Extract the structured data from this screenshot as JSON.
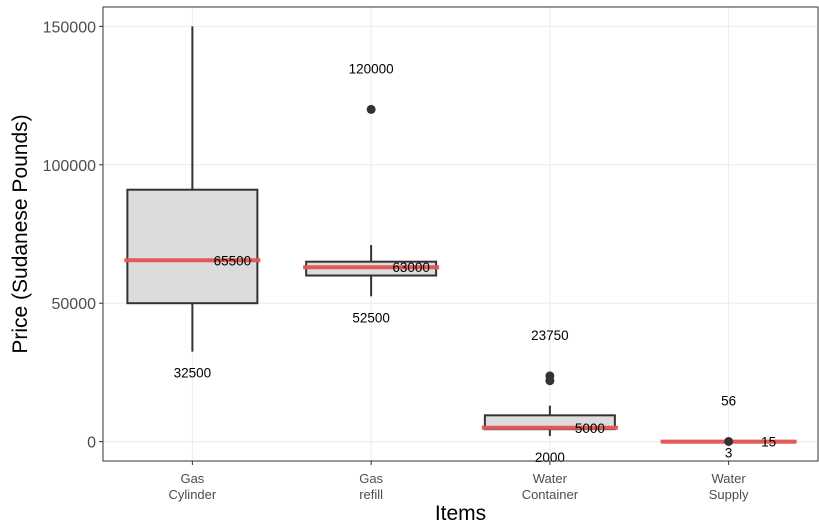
{
  "chart_data": {
    "type": "boxplot",
    "xlabel": "Items",
    "ylabel": "Price (Sudanese Pounds)",
    "ylim": [
      -7000,
      157000
    ],
    "yticks": [
      0,
      50000,
      100000,
      150000
    ],
    "ytick_labels": [
      "0",
      "50000",
      "100000",
      "150000"
    ],
    "grid": true,
    "colors": {
      "box_fill": "#dcdcdc",
      "box_stroke": "#333333",
      "median": "#e05a5a",
      "outlier": "#333333",
      "grid": "#ebebeb",
      "panel_border": "#333333"
    },
    "categories": [
      {
        "label_lines": [
          "Gas",
          "Cylinder"
        ],
        "min": 32500,
        "q1": 50000,
        "median": 65500,
        "q3": 91000,
        "max": 150000,
        "outliers": [],
        "annotations": [
          {
            "text": "65500",
            "value": 65500,
            "anchor": "median-right"
          },
          {
            "text": "32500",
            "value": 32500,
            "anchor": "below"
          }
        ]
      },
      {
        "label_lines": [
          "Gas",
          "refill"
        ],
        "min": 52500,
        "q1": 60000,
        "median": 63000,
        "q3": 65000,
        "max": 71000,
        "outliers": [
          120000
        ],
        "annotations": [
          {
            "text": "120000",
            "value": 120000,
            "anchor": "above"
          },
          {
            "text": "63000",
            "value": 63000,
            "anchor": "median-right"
          },
          {
            "text": "52500",
            "value": 52500,
            "anchor": "below"
          }
        ]
      },
      {
        "label_lines": [
          "Water",
          "Container"
        ],
        "min": 2000,
        "q1": 4500,
        "median": 5000,
        "q3": 9500,
        "max": 13000,
        "outliers": [
          22000,
          23750
        ],
        "annotations": [
          {
            "text": "23750",
            "value": 23750,
            "anchor": "above"
          },
          {
            "text": "5000",
            "value": 5000,
            "anchor": "median-right"
          },
          {
            "text": "2000",
            "value": 2000,
            "anchor": "below"
          }
        ]
      },
      {
        "label_lines": [
          "Water",
          "Supply"
        ],
        "min": 3,
        "q1": 10,
        "median": 15,
        "q3": 20,
        "max": 25,
        "outliers": [
          56
        ],
        "annotations": [
          {
            "text": "56",
            "value": 56,
            "anchor": "above"
          },
          {
            "text": "15",
            "value": 15,
            "anchor": "median-right"
          },
          {
            "text": "3",
            "value": 3,
            "anchor": "below"
          }
        ]
      }
    ]
  }
}
